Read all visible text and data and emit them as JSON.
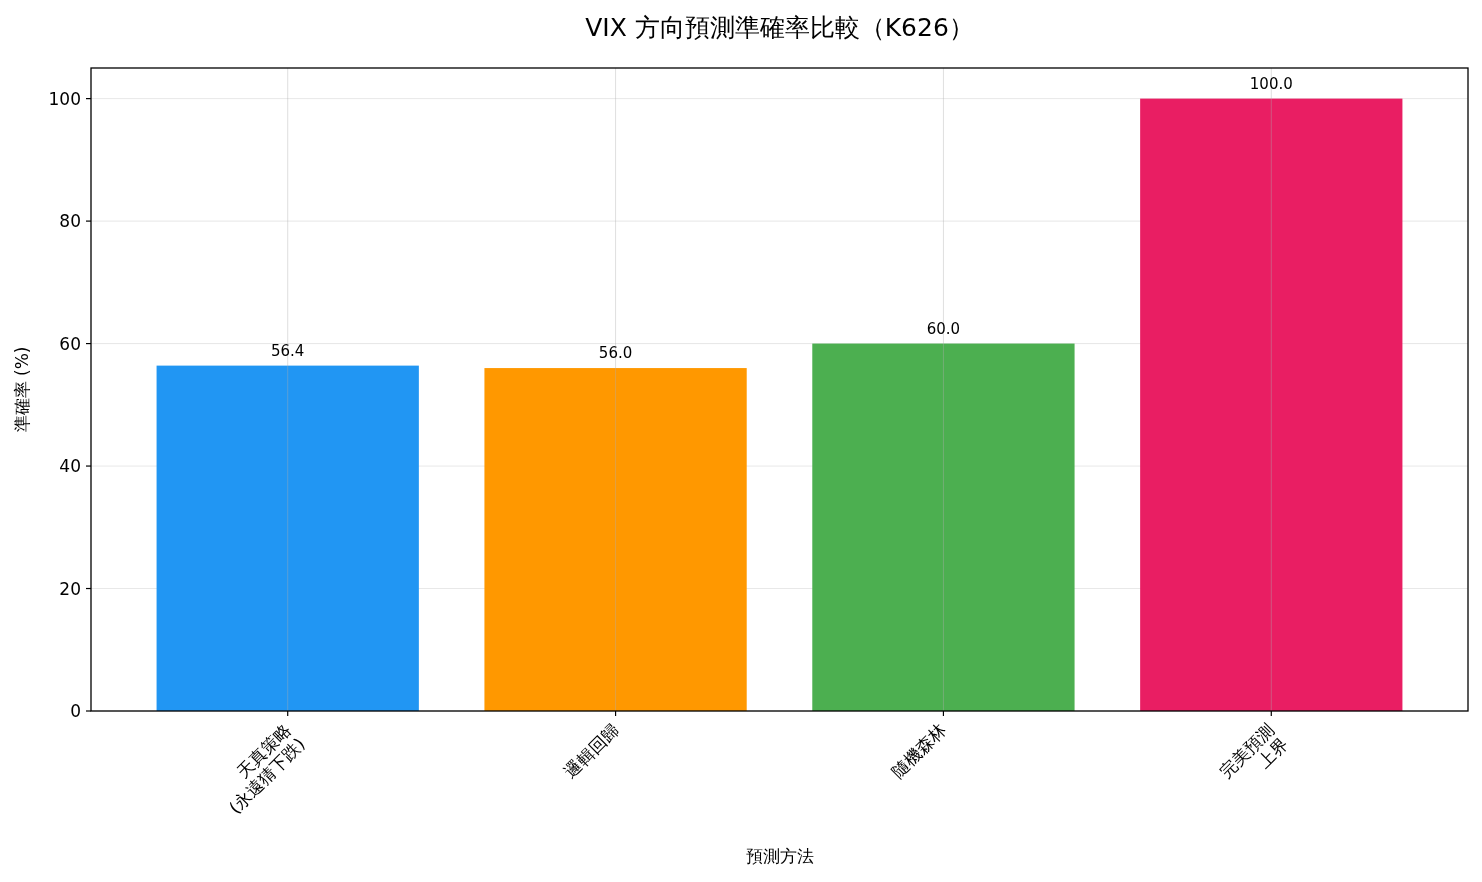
{
  "chart_data": {
    "type": "bar",
    "title": "VIX 方向預測準確率比較（K626）",
    "xlabel": "預測方法",
    "ylabel": "準確率 (%)",
    "categories": [
      "天真策略\n(永遠猜下跌)",
      "邏輯回歸",
      "隨機森林",
      "完美預測\n上界"
    ],
    "values": [
      56.4,
      56.0,
      60.0,
      100.0
    ],
    "colors": [
      "#2196f3",
      "#ff9800",
      "#4caf50",
      "#e91e63"
    ],
    "value_labels": [
      "56.4",
      "56.0",
      "60.0",
      "100.0"
    ],
    "ylim": [
      0,
      105
    ],
    "yticks": [
      0,
      20,
      40,
      60,
      80,
      100
    ],
    "grid": true
  }
}
